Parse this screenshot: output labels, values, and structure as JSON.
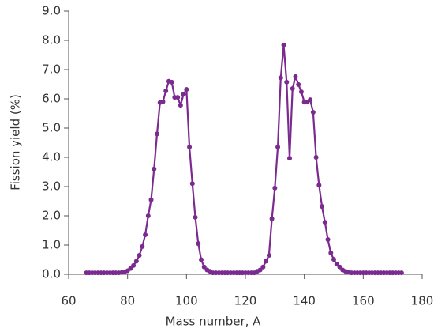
{
  "chart_data": {
    "type": "line",
    "xlabel": "Mass number, A",
    "ylabel": "Fission yield (%)",
    "color": "#7b2a8f",
    "x": [
      66,
      67,
      68,
      69,
      70,
      71,
      72,
      73,
      74,
      75,
      76,
      77,
      78,
      79,
      80,
      81,
      82,
      83,
      84,
      85,
      86,
      87,
      88,
      89,
      90,
      91,
      92,
      93,
      94,
      95,
      96,
      97,
      98,
      99,
      100,
      101,
      102,
      103,
      104,
      105,
      106,
      107,
      108,
      109,
      110,
      111,
      112,
      113,
      114,
      115,
      116,
      117,
      118,
      119,
      120,
      121,
      122,
      123,
      124,
      125,
      126,
      127,
      128,
      129,
      130,
      131,
      132,
      133,
      134,
      135,
      136,
      137,
      138,
      139,
      140,
      141,
      142,
      143,
      144,
      145,
      146,
      147,
      148,
      149,
      150,
      151,
      152,
      153,
      154,
      155,
      156,
      157,
      158,
      159,
      160,
      161,
      162,
      163,
      164,
      165,
      166,
      167,
      168,
      169,
      170,
      171,
      172,
      173
    ],
    "values": [
      0.05,
      0.05,
      0.05,
      0.05,
      0.05,
      0.05,
      0.05,
      0.05,
      0.05,
      0.05,
      0.05,
      0.05,
      0.06,
      0.08,
      0.12,
      0.2,
      0.3,
      0.45,
      0.65,
      0.95,
      1.35,
      2.0,
      2.55,
      3.6,
      4.8,
      5.87,
      5.9,
      6.27,
      6.6,
      6.57,
      6.05,
      6.05,
      5.78,
      6.16,
      6.32,
      4.35,
      3.1,
      1.95,
      1.05,
      0.5,
      0.25,
      0.15,
      0.1,
      0.05,
      0.05,
      0.05,
      0.05,
      0.05,
      0.05,
      0.05,
      0.05,
      0.05,
      0.05,
      0.05,
      0.05,
      0.05,
      0.05,
      0.05,
      0.1,
      0.15,
      0.25,
      0.45,
      0.65,
      1.9,
      2.95,
      4.35,
      6.72,
      7.84,
      6.57,
      3.97,
      6.35,
      6.76,
      6.49,
      6.24,
      5.89,
      5.89,
      5.97,
      5.54,
      4.0,
      3.05,
      2.32,
      1.78,
      1.19,
      0.73,
      0.51,
      0.35,
      0.25,
      0.15,
      0.1,
      0.07,
      0.05,
      0.05,
      0.05,
      0.05,
      0.05,
      0.05,
      0.05,
      0.05,
      0.05,
      0.05,
      0.05,
      0.05,
      0.05,
      0.05,
      0.05,
      0.05,
      0.05,
      0.05
    ],
    "xlim": [
      60,
      180
    ],
    "xticks": [
      60,
      80,
      100,
      120,
      140,
      160,
      180
    ],
    "ylim": [
      0,
      9
    ],
    "yticks": [
      {
        "value": 0,
        "label": "0.0"
      },
      {
        "value": 1,
        "label": "1.0"
      },
      {
        "value": 2,
        "label": "2.0"
      },
      {
        "value": 3,
        "label": "3.0"
      },
      {
        "value": 4,
        "label": "4.0"
      },
      {
        "value": 5,
        "label": "5.0"
      },
      {
        "value": 6,
        "label": "6.0"
      },
      {
        "value": 7,
        "label": "7.0"
      },
      {
        "value": 8,
        "label": "8.0"
      },
      {
        "value": 9,
        "label": "9.0"
      }
    ]
  }
}
